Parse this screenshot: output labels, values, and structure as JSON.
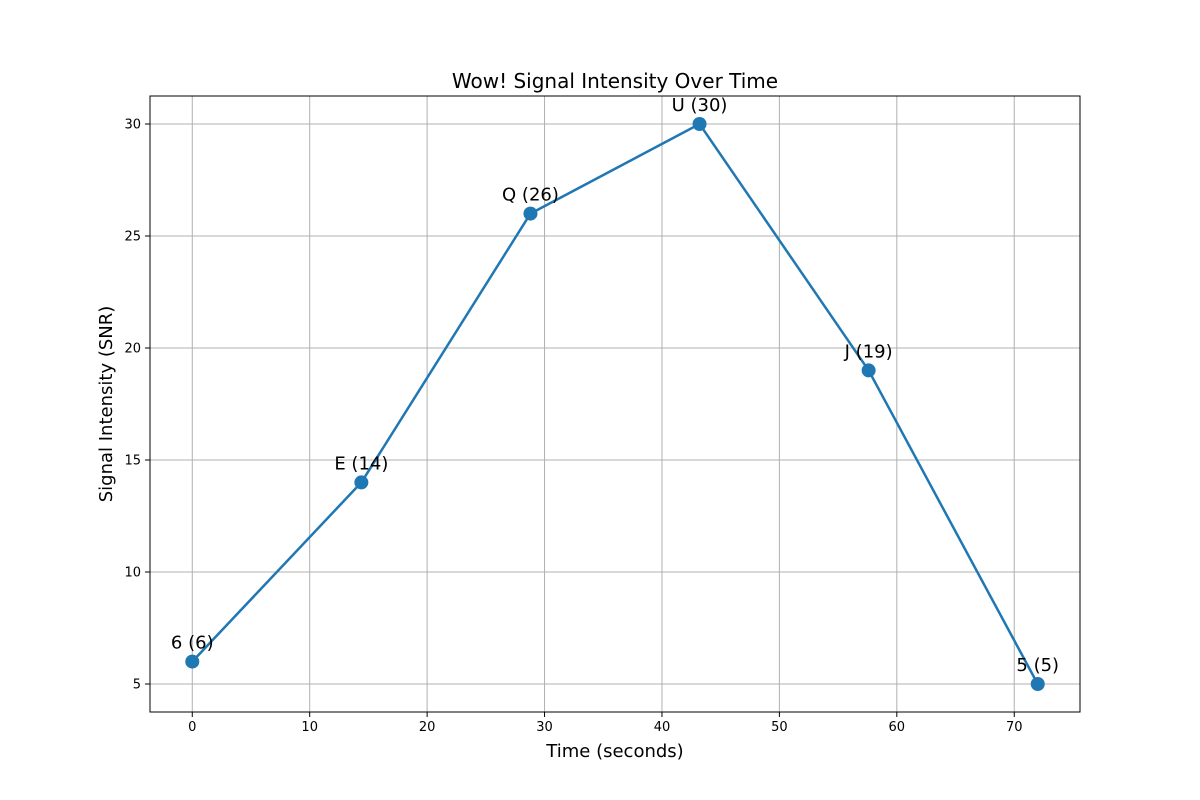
{
  "chart_data": {
    "type": "line",
    "title": "Wow! Signal Intensity Over Time",
    "xlabel": "Time (seconds)",
    "ylabel": "Signal Intensity (SNR)",
    "xlim": [
      -3.6,
      75.6
    ],
    "ylim": [
      3.75,
      31.25
    ],
    "xticks": [
      0,
      10,
      20,
      30,
      40,
      50,
      60,
      70
    ],
    "yticks": [
      5,
      10,
      15,
      20,
      25,
      30
    ],
    "grid": true,
    "legend": false,
    "color": "#1f77b4",
    "x": [
      0,
      14.4,
      28.8,
      43.2,
      57.6,
      72
    ],
    "y": [
      6,
      14,
      26,
      30,
      19,
      5
    ],
    "point_labels": [
      "6 (6)",
      "E (14)",
      "Q (26)",
      "U (30)",
      "J (19)",
      "5 (5)"
    ]
  }
}
